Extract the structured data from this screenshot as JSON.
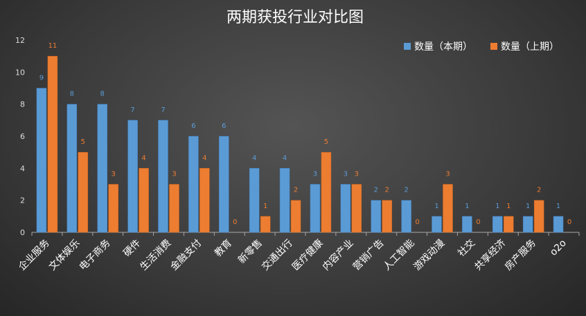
{
  "chart_data": {
    "type": "bar",
    "title": "两期获投行业对比图",
    "categories": [
      "企业服务",
      "文体娱乐",
      "电子商务",
      "硬件",
      "生活消费",
      "金融支付",
      "教育",
      "新零售",
      "交通出行",
      "医疗健康",
      "内容产业",
      "营销广告",
      "人工智能",
      "游戏动漫",
      "社交",
      "共享经济",
      "房产服务",
      "o2o"
    ],
    "series": [
      {
        "name": "数量（本期）",
        "color": "#5b9bd5",
        "values": [
          9,
          8,
          8,
          7,
          7,
          6,
          6,
          4,
          4,
          3,
          3,
          2,
          2,
          1,
          1,
          1,
          1,
          1
        ]
      },
      {
        "name": "数量（上期）",
        "color": "#ed7d31",
        "values": [
          11,
          5,
          3,
          4,
          3,
          4,
          0,
          1,
          2,
          5,
          3,
          2,
          0,
          3,
          0,
          1,
          2,
          0
        ]
      }
    ],
    "ylim": [
      0,
      12
    ],
    "yticks": [
      0,
      2,
      4,
      6,
      8,
      10,
      12
    ],
    "grid": false,
    "legend": "top-right",
    "xlabel": "",
    "ylabel": ""
  }
}
